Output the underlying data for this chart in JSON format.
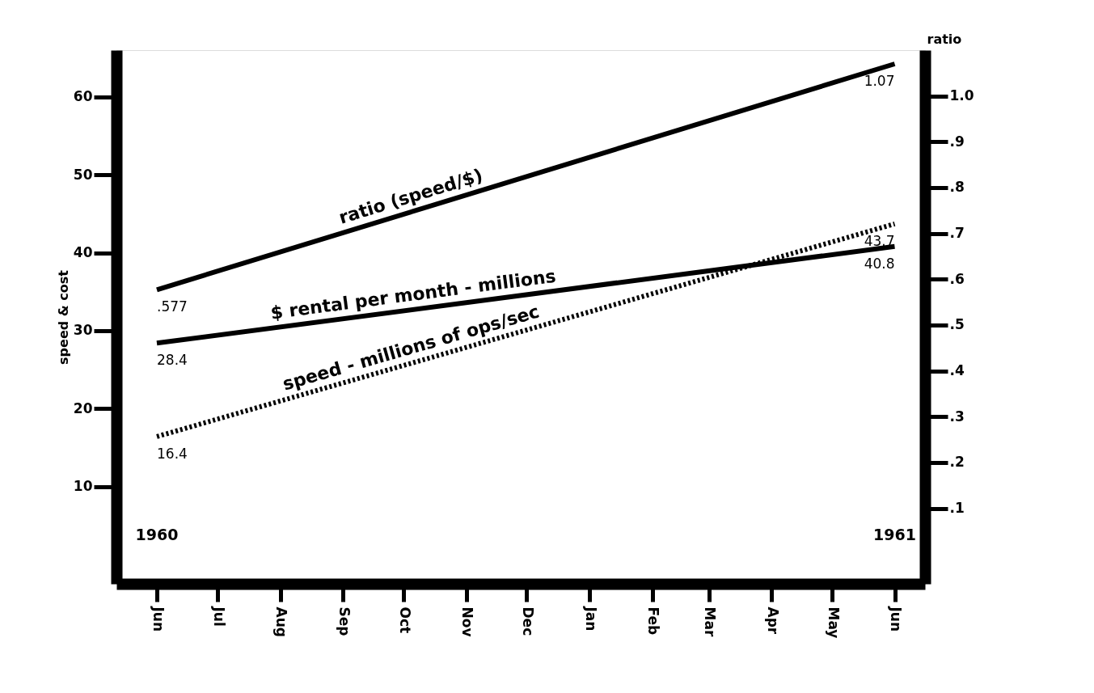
{
  "chart_data": {
    "type": "line",
    "ylabel": "speed & cost",
    "y2label": "ratio",
    "xlim": [
      "1960-05-12",
      "1961-06-16"
    ],
    "xticks": [
      {
        "value": "1960-06",
        "label": "Jun"
      },
      {
        "value": "1960-07",
        "label": "Jul"
      },
      {
        "value": "1960-08",
        "label": "Aug"
      },
      {
        "value": "1960-09",
        "label": "Sep"
      },
      {
        "value": "1960-10",
        "label": "Oct"
      },
      {
        "value": "1960-11",
        "label": "Nov"
      },
      {
        "value": "1960-12",
        "label": "Dec"
      },
      {
        "value": "1961-01",
        "label": "Jan"
      },
      {
        "value": "1961-02",
        "label": "Feb"
      },
      {
        "value": "1961-03",
        "label": "Mar"
      },
      {
        "value": "1961-04",
        "label": "Apr"
      },
      {
        "value": "1961-05",
        "label": "May"
      },
      {
        "value": "1961-06",
        "label": "Jun"
      }
    ],
    "ylim": [
      -2.5,
      66
    ],
    "yticks": [
      10,
      20,
      30,
      40,
      50,
      60
    ],
    "y2lim": [
      -0.065,
      1.1
    ],
    "y2ticks": [
      {
        "value": 0.1,
        "label": ".1"
      },
      {
        "value": 0.2,
        "label": ".2"
      },
      {
        "value": 0.3,
        "label": ".3"
      },
      {
        "value": 0.4,
        "label": ".4"
      },
      {
        "value": 0.5,
        "label": ".5"
      },
      {
        "value": 0.6,
        "label": ".6"
      },
      {
        "value": 0.7,
        "label": ".7"
      },
      {
        "value": 0.8,
        "label": ".8"
      },
      {
        "value": 0.9,
        "label": ".9"
      },
      {
        "value": 1.0,
        "label": "1.0"
      }
    ],
    "series": [
      {
        "name": "ratio (speed/$)",
        "color": "#000000",
        "axis": "y2",
        "line_style": "solid",
        "x": [
          "1960-06",
          "1961-06"
        ],
        "values": [
          0.577,
          1.07
        ],
        "value_labels": [
          ".577",
          "1.07"
        ]
      },
      {
        "name": "$ rental per month - millions",
        "color": "#000000",
        "line_style": "solid",
        "x": [
          "1960-06",
          "1961-06"
        ],
        "values": [
          28.4,
          40.8
        ],
        "value_labels": [
          "28.4",
          "40.8"
        ]
      },
      {
        "name": "speed - millions of ops/sec",
        "color": "#000000",
        "line_style": "dotted",
        "x": [
          "1960-06",
          "1961-06"
        ],
        "values": [
          16.4,
          43.7
        ],
        "value_labels": [
          "16.4",
          "43.7"
        ]
      }
    ],
    "annotations": [
      "1960",
      "1961"
    ],
    "grid": false,
    "legend": false,
    "marker": "none"
  }
}
